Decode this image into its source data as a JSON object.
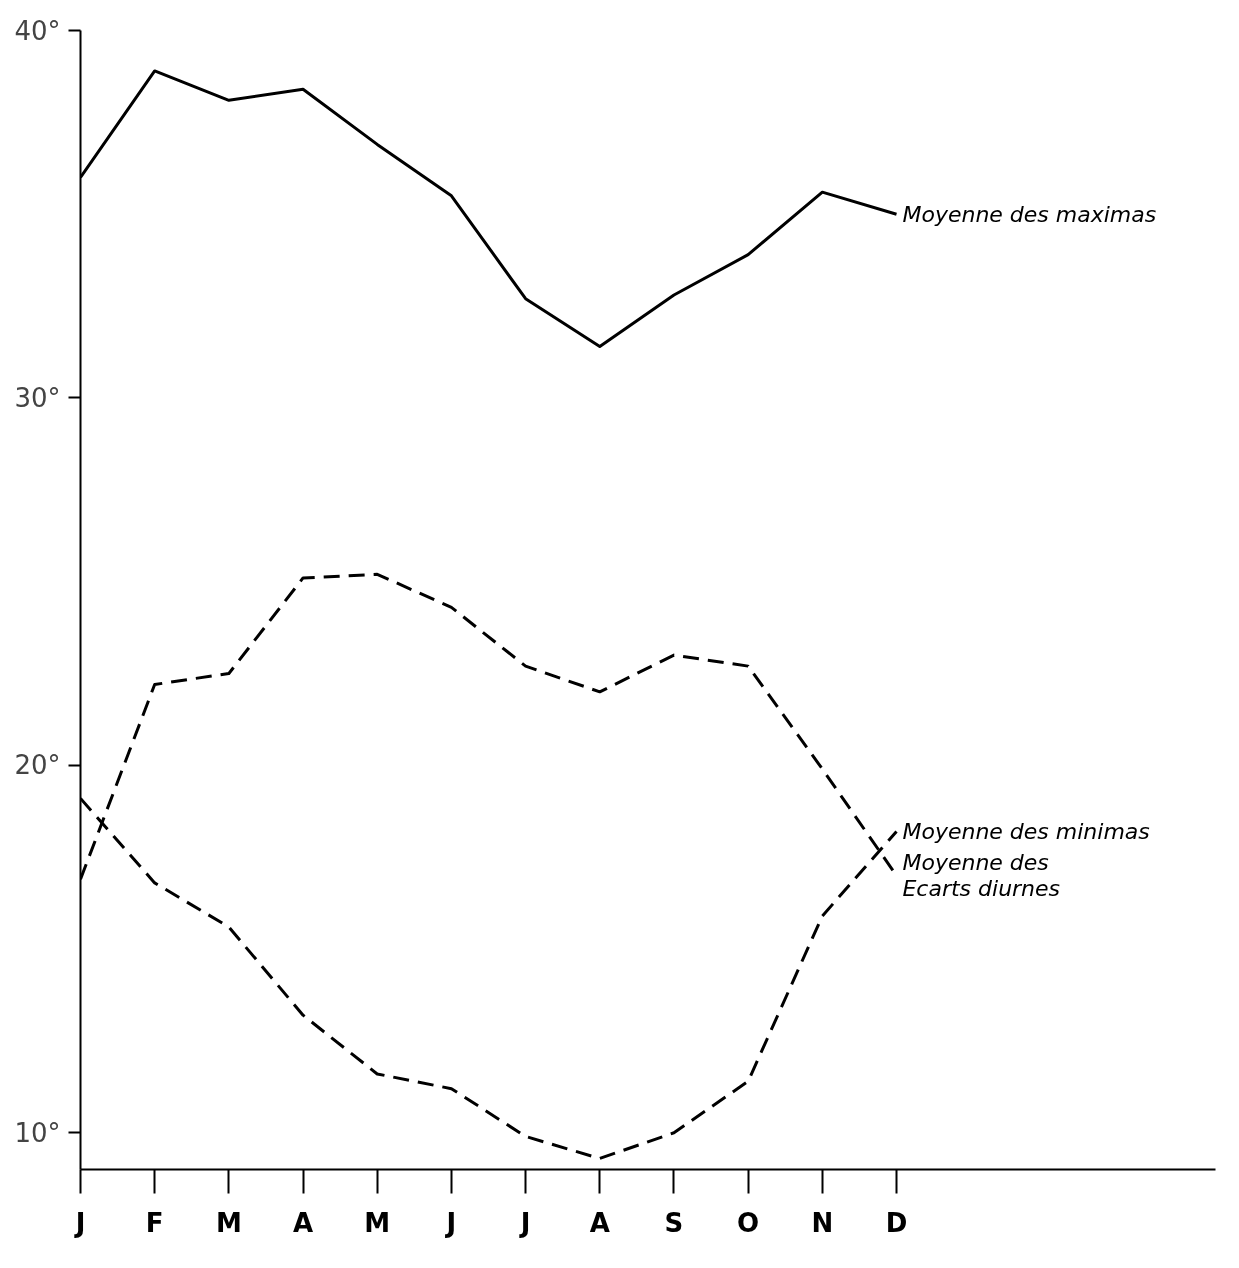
{
  "chart_data": {
    "type": "line",
    "categories": [
      "J",
      "F",
      "M",
      "A",
      "M",
      "J",
      "J",
      "A",
      "S",
      "O",
      "N",
      "D"
    ],
    "ylim": [
      9,
      40
    ],
    "yticks": [
      {
        "value": 10,
        "label": "10°"
      },
      {
        "value": 20,
        "label": "20°"
      },
      {
        "value": 30,
        "label": "30°"
      },
      {
        "value": 40,
        "label": "40°"
      }
    ],
    "grid": false,
    "marker": "none",
    "series": [
      {
        "name": "Moyenne des maximas",
        "color": "#000000",
        "line_style": "solid",
        "values": [
          36.0,
          38.9,
          38.1,
          38.4,
          36.9,
          35.5,
          32.7,
          31.4,
          32.8,
          33.9,
          35.6,
          35.0
        ]
      },
      {
        "name": "Moyenne des\nEcarts diurnes",
        "color": "#000000",
        "line_style": "dashed",
        "values": [
          16.9,
          22.2,
          22.5,
          25.1,
          25.2,
          24.3,
          22.7,
          22.0,
          23.0,
          22.7,
          19.9,
          17.0
        ]
      },
      {
        "name": "Moyenne des minimas",
        "color": "#000000",
        "line_style": "dashed",
        "values": [
          19.1,
          16.8,
          15.6,
          13.2,
          11.6,
          11.2,
          9.9,
          9.3,
          10.0,
          11.4,
          15.9,
          18.2
        ]
      }
    ]
  }
}
